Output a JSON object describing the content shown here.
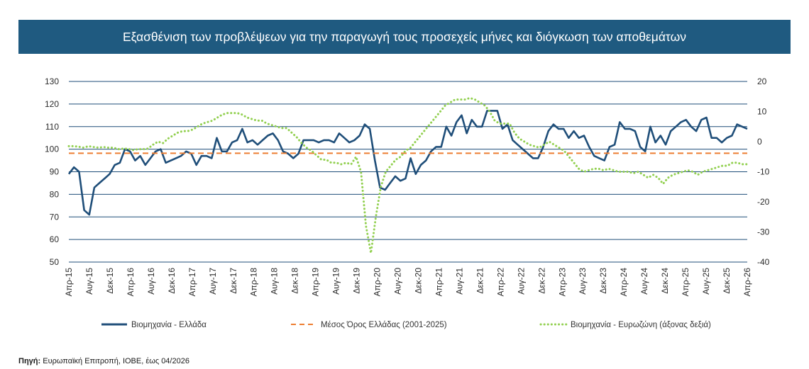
{
  "title": "Εξασθένιση των προβλέψεων για την παραγωγή τους προσεχείς μήνες και διόγκωση των αποθεμάτων",
  "source_label": "Πηγή:",
  "source_text": "Ευρωπαϊκή Επιτροπή, ΙΟΒΕ, έως 04/2026",
  "colors": {
    "title_bg": "#1f5a80",
    "greece": "#1f4e79",
    "average": "#ed7d31",
    "eurozone": "#92d050",
    "grid": "#1f4e79"
  },
  "chart_data": {
    "type": "line",
    "x_labels": [
      "Απρ-15",
      "Αυγ-15",
      "Δεκ-15",
      "Απρ-16",
      "Αυγ-16",
      "Δεκ-16",
      "Απρ-17",
      "Αυγ-17",
      "Δεκ-17",
      "Απρ-18",
      "Αυγ-18",
      "Δεκ-18",
      "Απρ-19",
      "Αυγ-19",
      "Δεκ-19",
      "Απρ-20",
      "Αυγ-20",
      "Δεκ-20",
      "Απρ-21",
      "Αυγ-21",
      "Δεκ-21",
      "Απρ-22",
      "Αυγ-22",
      "Δεκ-22",
      "Απρ-23",
      "Αυγ-23",
      "Δεκ-23",
      "Απρ-24",
      "Αυγ-24",
      "Δεκ-24",
      "Απρ-25",
      "Αυγ-25",
      "Δεκ-25",
      "Απρ-26"
    ],
    "y_left": {
      "min": 50,
      "max": 130,
      "step": 10,
      "ticks": [
        "50",
        "60",
        "70",
        "80",
        "90",
        "100",
        "110",
        "120",
        "130"
      ]
    },
    "y_right": {
      "min": -40,
      "max": 20,
      "step": 10,
      "ticks": [
        "-40",
        "-30",
        "-20",
        "-10",
        "0",
        "10",
        "20"
      ]
    },
    "grid": true,
    "legend_position": "bottom",
    "series": [
      {
        "name": "Βιομηχανία  - Ελλάδα",
        "axis": "left",
        "style": "solid",
        "values": [
          89,
          92,
          90,
          73,
          71,
          83,
          85,
          87,
          89,
          93,
          94,
          100,
          99,
          95,
          97,
          93,
          96,
          99,
          100,
          94,
          95,
          96,
          97,
          99,
          98,
          93,
          97,
          97,
          96,
          105,
          99,
          99,
          103,
          104,
          109,
          103,
          104,
          102,
          104,
          106,
          107,
          104,
          99,
          98,
          96,
          98,
          104,
          104,
          104,
          103,
          104,
          104,
          103,
          107,
          105,
          103,
          104,
          106,
          111,
          109,
          95,
          83,
          82,
          85,
          88,
          86,
          87,
          96,
          89,
          93,
          95,
          99,
          101,
          101,
          110,
          106,
          112,
          115,
          107,
          113,
          110,
          110,
          117,
          117,
          117,
          109,
          111,
          104,
          102,
          100,
          98,
          96,
          96,
          101,
          108,
          111,
          109,
          109,
          105,
          108,
          105,
          106,
          101,
          97,
          96,
          95,
          101,
          102,
          112,
          109,
          109,
          108,
          101,
          99,
          110,
          103,
          106,
          102,
          108,
          110,
          112,
          113,
          110,
          108,
          113,
          114,
          105,
          105,
          103,
          105,
          106,
          111,
          110,
          109
        ]
      },
      {
        "name": "Μέσος Όρος Ελλάδας (2001-2025)",
        "axis": "left",
        "style": "dashed",
        "values": [
          98.2
        ]
      },
      {
        "name": "Βιομηχανία - Ευρωζώνη (άξονας δεξιά)",
        "axis": "right",
        "style": "dotted",
        "values": [
          -1.5,
          -1.5,
          -1.7,
          -2,
          -1.5,
          -1.8,
          -2,
          -1.8,
          -2,
          -2,
          -2.5,
          -2.3,
          -2.4,
          -2.8,
          -2.5,
          -2.5,
          -2.3,
          -1,
          0,
          -0.5,
          1,
          2,
          3,
          3.5,
          3.5,
          4,
          5,
          6,
          6.5,
          7,
          8,
          9,
          9.5,
          9.5,
          9.5,
          9,
          8,
          7.5,
          7,
          7,
          6,
          5.5,
          5,
          4.5,
          4.5,
          3,
          1.5,
          -0.5,
          -2,
          -3,
          -4.5,
          -6,
          -6,
          -7,
          -7,
          -7.5,
          -7,
          -7.5,
          -5,
          -10,
          -28,
          -37,
          -25,
          -15,
          -10,
          -8,
          -6,
          -5,
          -3,
          -2,
          0,
          2,
          4,
          6,
          8,
          10,
          12,
          13,
          14,
          14,
          14,
          14.5,
          14,
          13,
          12,
          10,
          7,
          6,
          6,
          6,
          3,
          1,
          0,
          -1,
          -1.5,
          -2,
          -1,
          0,
          -1,
          -2,
          -3,
          -5,
          -7,
          -9,
          -10,
          -9.5,
          -9,
          -9,
          -9.5,
          -9,
          -9.5,
          -10,
          -10,
          -10,
          -10.5,
          -10,
          -11,
          -12,
          -11,
          -12,
          -14,
          -12,
          -11,
          -10.5,
          -10,
          -9.5,
          -10,
          -11,
          -10,
          -9.5,
          -9,
          -8.5,
          -8,
          -8,
          -7,
          -7,
          -7.5,
          -7.5
        ]
      }
    ]
  }
}
